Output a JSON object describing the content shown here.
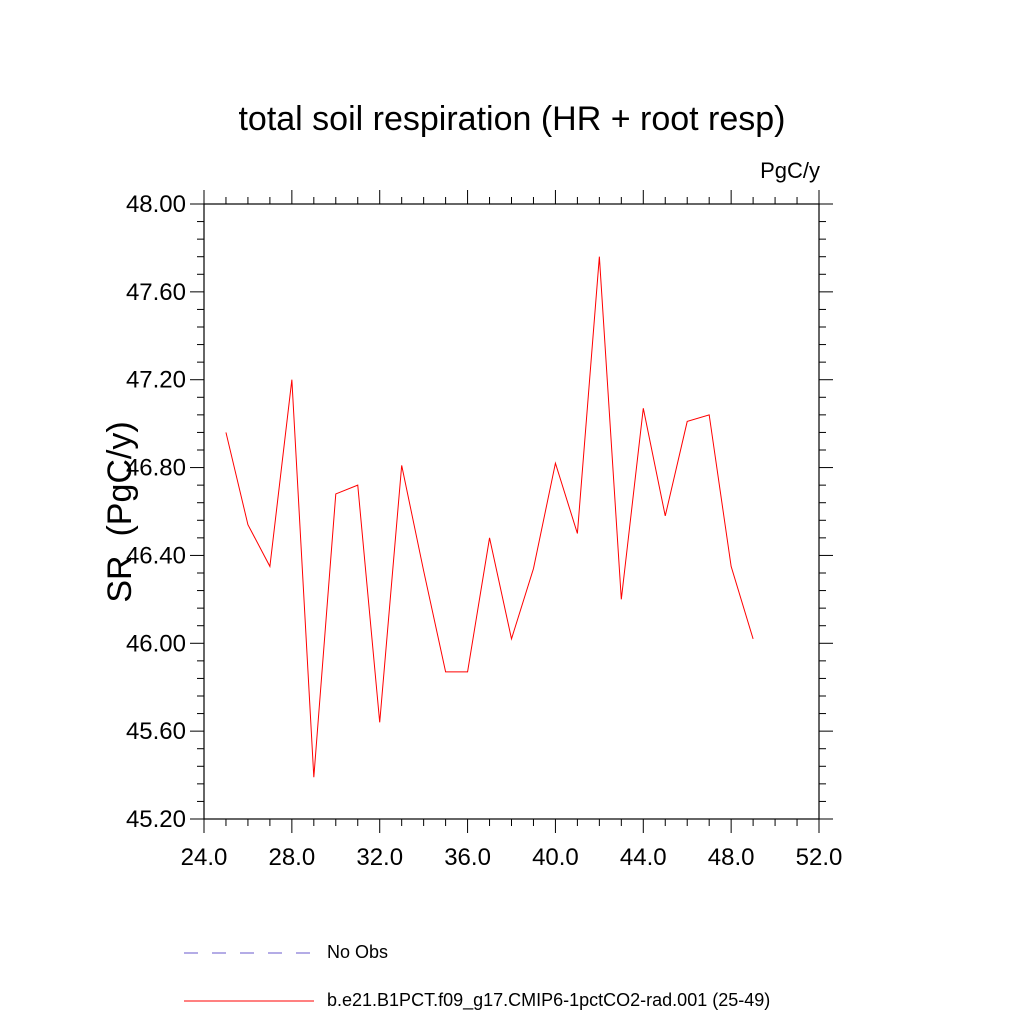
{
  "chart_data": {
    "type": "line",
    "title": "total soil respiration (HR + root resp)",
    "units_label": "PgC/y",
    "ylabel": "SR  (PgC/y)",
    "xlabel": "",
    "xlim": [
      24,
      52
    ],
    "ylim": [
      45.2,
      48.0
    ],
    "x_ticks": [
      "24.0",
      "28.0",
      "32.0",
      "36.0",
      "40.0",
      "44.0",
      "48.0",
      "52.0"
    ],
    "y_ticks": [
      "45.20",
      "45.60",
      "46.00",
      "46.40",
      "46.80",
      "47.20",
      "47.60",
      "48.00"
    ],
    "grid": false,
    "legend_position": "bottom",
    "series": [
      {
        "name": "No Obs",
        "color": "#6a5acd",
        "style": "dashed",
        "x": [],
        "y": []
      },
      {
        "name": "b.e21.B1PCT.f09_g17.CMIP6-1pctCO2-rad.001 (25-49)",
        "color": "#ff0000",
        "style": "solid",
        "x": [
          25,
          26,
          27,
          28,
          29,
          30,
          31,
          32,
          33,
          34,
          35,
          36,
          37,
          38,
          39,
          40,
          41,
          42,
          43,
          44,
          45,
          46,
          47,
          48,
          49
        ],
        "y": [
          46.96,
          46.54,
          46.35,
          47.2,
          45.39,
          46.68,
          46.72,
          45.64,
          46.81,
          46.33,
          45.87,
          45.87,
          46.48,
          46.02,
          46.34,
          46.82,
          46.5,
          47.76,
          46.2,
          47.07,
          46.58,
          47.01,
          47.04,
          46.35,
          46.02
        ]
      }
    ]
  }
}
